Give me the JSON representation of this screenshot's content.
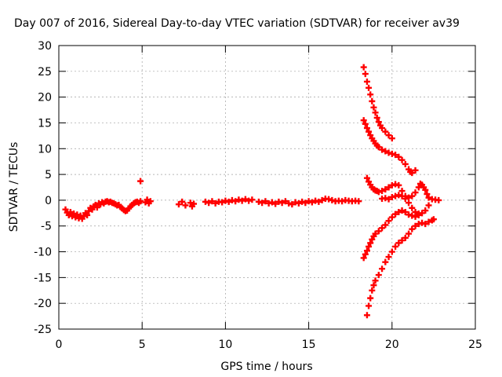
{
  "chart_data": {
    "type": "scatter",
    "title": "Day 007 of 2016, Sidereal Day-to-day VTEC variation (SDTVAR) for receiver av39",
    "xlabel": "GPS time / hours",
    "ylabel": "SDTVAR / TECUs",
    "xlim": [
      0,
      25
    ],
    "ylim": [
      -25,
      30
    ],
    "xticks": [
      "0",
      "5",
      "10",
      "15",
      "20",
      "25"
    ],
    "yticks": [
      "-25",
      "-20",
      "-15",
      "-10",
      "-5",
      "0",
      "5",
      "10",
      "15",
      "20",
      "25",
      "30"
    ],
    "grid": true,
    "marker_color": "#ff0000",
    "series": [
      {
        "points": [
          [
            0.4,
            -1.8
          ],
          [
            0.5,
            -2.4
          ],
          [
            0.6,
            -2.9
          ],
          [
            0.7,
            -2.3
          ],
          [
            0.8,
            -3.1
          ],
          [
            0.9,
            -2.6
          ],
          [
            1.0,
            -3.3
          ],
          [
            1.1,
            -2.8
          ],
          [
            1.2,
            -3.5
          ],
          [
            1.3,
            -3.0
          ],
          [
            1.4,
            -3.6
          ],
          [
            1.5,
            -3.1
          ],
          [
            1.6,
            -2.5
          ],
          [
            1.7,
            -2.9
          ],
          [
            1.8,
            -2.1
          ],
          [
            1.9,
            -1.5
          ],
          [
            2.0,
            -1.8
          ],
          [
            2.1,
            -1.2
          ],
          [
            2.2,
            -0.9
          ],
          [
            2.3,
            -1.4
          ],
          [
            2.4,
            -0.6
          ],
          [
            2.5,
            -0.8
          ],
          [
            2.6,
            -0.4
          ],
          [
            2.7,
            -0.6
          ],
          [
            2.8,
            -0.3
          ],
          [
            2.9,
            -0.2
          ],
          [
            3.0,
            -0.4
          ],
          [
            3.1,
            -0.3
          ],
          [
            3.2,
            -0.5
          ],
          [
            3.3,
            -0.6
          ],
          [
            3.4,
            -0.8
          ],
          [
            3.5,
            -1.0
          ],
          [
            3.6,
            -0.9
          ],
          [
            3.7,
            -1.3
          ],
          [
            3.8,
            -1.6
          ],
          [
            3.9,
            -1.9
          ],
          [
            4.0,
            -2.1
          ],
          [
            4.1,
            -2.0
          ],
          [
            4.2,
            -1.6
          ],
          [
            4.3,
            -1.2
          ],
          [
            4.4,
            -0.9
          ],
          [
            4.5,
            -0.6
          ],
          [
            4.6,
            -0.4
          ],
          [
            4.7,
            -0.3
          ],
          [
            4.8,
            -0.5
          ],
          [
            4.9,
            -0.2
          ],
          [
            4.9,
            3.7
          ],
          [
            5.2,
            -0.4
          ],
          [
            5.3,
            0.1
          ],
          [
            5.4,
            -0.6
          ],
          [
            5.5,
            -0.2
          ],
          [
            7.2,
            -0.8
          ],
          [
            7.4,
            -0.3
          ],
          [
            7.6,
            -1.0
          ],
          [
            7.9,
            -0.5
          ],
          [
            8.0,
            -1.2
          ],
          [
            8.1,
            -0.7
          ],
          [
            8.8,
            -0.3
          ],
          [
            9.0,
            -0.5
          ],
          [
            9.2,
            -0.2
          ],
          [
            9.4,
            -0.6
          ],
          [
            9.6,
            -0.3
          ],
          [
            9.8,
            -0.4
          ],
          [
            10.0,
            -0.1
          ],
          [
            10.2,
            -0.3
          ],
          [
            10.4,
            0.0
          ],
          [
            10.6,
            -0.2
          ],
          [
            10.8,
            0.1
          ],
          [
            11.0,
            -0.1
          ],
          [
            11.2,
            0.2
          ],
          [
            11.4,
            -0.1
          ],
          [
            11.6,
            0.1
          ],
          [
            12.0,
            -0.3
          ],
          [
            12.2,
            -0.5
          ],
          [
            12.4,
            -0.2
          ],
          [
            12.6,
            -0.6
          ],
          [
            12.8,
            -0.4
          ],
          [
            13.0,
            -0.7
          ],
          [
            13.2,
            -0.3
          ],
          [
            13.4,
            -0.5
          ],
          [
            13.6,
            -0.2
          ],
          [
            13.8,
            -0.6
          ],
          [
            14.0,
            -0.8
          ],
          [
            14.2,
            -0.4
          ],
          [
            14.4,
            -0.6
          ],
          [
            14.6,
            -0.3
          ],
          [
            14.8,
            -0.5
          ],
          [
            15.0,
            -0.2
          ],
          [
            15.2,
            -0.4
          ],
          [
            15.4,
            -0.1
          ],
          [
            15.6,
            -0.3
          ],
          [
            15.8,
            0.0
          ],
          [
            16.0,
            0.3
          ],
          [
            16.2,
            0.2
          ],
          [
            16.4,
            0.0
          ],
          [
            16.6,
            -0.2
          ],
          [
            16.8,
            -0.1
          ],
          [
            17.0,
            -0.2
          ],
          [
            17.2,
            0.0
          ],
          [
            17.4,
            -0.1
          ],
          [
            17.6,
            -0.2
          ],
          [
            17.8,
            -0.1
          ],
          [
            18.0,
            -0.2
          ],
          [
            18.3,
            25.8
          ],
          [
            18.4,
            24.5
          ],
          [
            18.5,
            23.0
          ],
          [
            18.6,
            21.8
          ],
          [
            18.7,
            20.5
          ],
          [
            18.8,
            19.2
          ],
          [
            18.9,
            18.0
          ],
          [
            19.0,
            17.0
          ],
          [
            19.1,
            16.0
          ],
          [
            19.2,
            15.2
          ],
          [
            19.3,
            14.5
          ],
          [
            19.4,
            14.0
          ],
          [
            19.6,
            13.3
          ],
          [
            19.8,
            12.6
          ],
          [
            20.0,
            12.0
          ],
          [
            18.3,
            15.5
          ],
          [
            18.4,
            14.8
          ],
          [
            18.5,
            14.0
          ],
          [
            18.6,
            13.3
          ],
          [
            18.7,
            12.6
          ],
          [
            18.8,
            12.0
          ],
          [
            18.9,
            11.5
          ],
          [
            19.0,
            11.0
          ],
          [
            19.1,
            10.6
          ],
          [
            19.2,
            10.3
          ],
          [
            19.4,
            9.8
          ],
          [
            19.6,
            9.5
          ],
          [
            19.8,
            9.2
          ],
          [
            20.0,
            9.0
          ],
          [
            20.2,
            8.8
          ],
          [
            20.4,
            8.4
          ],
          [
            20.6,
            7.8
          ],
          [
            20.8,
            7.0
          ],
          [
            21.0,
            6.0
          ],
          [
            21.1,
            5.5
          ],
          [
            21.2,
            5.3
          ],
          [
            21.4,
            5.8
          ],
          [
            18.5,
            4.3
          ],
          [
            18.6,
            3.6
          ],
          [
            18.7,
            3.0
          ],
          [
            18.8,
            2.5
          ],
          [
            18.9,
            2.1
          ],
          [
            19.0,
            1.9
          ],
          [
            19.1,
            1.8
          ],
          [
            19.2,
            1.6
          ],
          [
            19.4,
            1.8
          ],
          [
            19.6,
            2.1
          ],
          [
            19.8,
            2.5
          ],
          [
            20.0,
            2.9
          ],
          [
            20.2,
            3.1
          ],
          [
            20.4,
            2.9
          ],
          [
            20.6,
            1.8
          ],
          [
            20.8,
            0.8
          ],
          [
            21.0,
            0.5
          ],
          [
            21.2,
            0.8
          ],
          [
            21.4,
            1.5
          ],
          [
            21.6,
            2.5
          ],
          [
            21.7,
            3.2
          ],
          [
            21.8,
            3.0
          ],
          [
            21.9,
            2.5
          ],
          [
            22.0,
            2.0
          ],
          [
            22.1,
            1.2
          ],
          [
            22.2,
            0.5
          ],
          [
            22.4,
            0.2
          ],
          [
            22.6,
            0.1
          ],
          [
            22.8,
            0.0
          ],
          [
            19.4,
            0.3
          ],
          [
            19.6,
            0.4
          ],
          [
            19.8,
            0.2
          ],
          [
            20.0,
            0.6
          ],
          [
            20.2,
            0.8
          ],
          [
            20.4,
            1.0
          ],
          [
            20.6,
            0.8
          ],
          [
            20.8,
            0.3
          ],
          [
            21.0,
            -0.5
          ],
          [
            21.2,
            -1.5
          ],
          [
            21.4,
            -2.3
          ],
          [
            21.6,
            -2.6
          ],
          [
            21.8,
            -2.5
          ],
          [
            22.0,
            -2.0
          ],
          [
            22.2,
            -1.0
          ],
          [
            18.3,
            -11.2
          ],
          [
            18.4,
            -10.5
          ],
          [
            18.5,
            -9.8
          ],
          [
            18.6,
            -9.0
          ],
          [
            18.7,
            -8.3
          ],
          [
            18.8,
            -7.6
          ],
          [
            18.9,
            -7.0
          ],
          [
            19.0,
            -6.5
          ],
          [
            19.2,
            -6.0
          ],
          [
            19.4,
            -5.4
          ],
          [
            19.6,
            -4.8
          ],
          [
            19.8,
            -4.0
          ],
          [
            20.0,
            -3.3
          ],
          [
            20.2,
            -2.7
          ],
          [
            20.4,
            -2.3
          ],
          [
            20.6,
            -2.0
          ],
          [
            20.8,
            -2.3
          ],
          [
            21.0,
            -2.8
          ],
          [
            21.2,
            -3.0
          ],
          [
            21.4,
            -3.2
          ],
          [
            21.6,
            -2.9
          ],
          [
            18.5,
            -22.3
          ],
          [
            18.6,
            -20.5
          ],
          [
            18.7,
            -19.0
          ],
          [
            18.8,
            -17.5
          ],
          [
            18.9,
            -16.5
          ],
          [
            19.0,
            -15.6
          ],
          [
            19.2,
            -14.5
          ],
          [
            19.4,
            -13.3
          ],
          [
            19.6,
            -12.0
          ],
          [
            19.8,
            -11.0
          ],
          [
            20.0,
            -10.0
          ],
          [
            20.2,
            -9.0
          ],
          [
            20.4,
            -8.3
          ],
          [
            20.6,
            -7.8
          ],
          [
            20.8,
            -7.3
          ],
          [
            21.0,
            -6.5
          ],
          [
            21.2,
            -5.6
          ],
          [
            21.4,
            -5.0
          ],
          [
            21.6,
            -4.6
          ],
          [
            21.8,
            -4.4
          ],
          [
            22.0,
            -4.6
          ],
          [
            22.2,
            -4.2
          ],
          [
            22.4,
            -3.9
          ],
          [
            22.5,
            -3.7
          ]
        ]
      }
    ]
  }
}
